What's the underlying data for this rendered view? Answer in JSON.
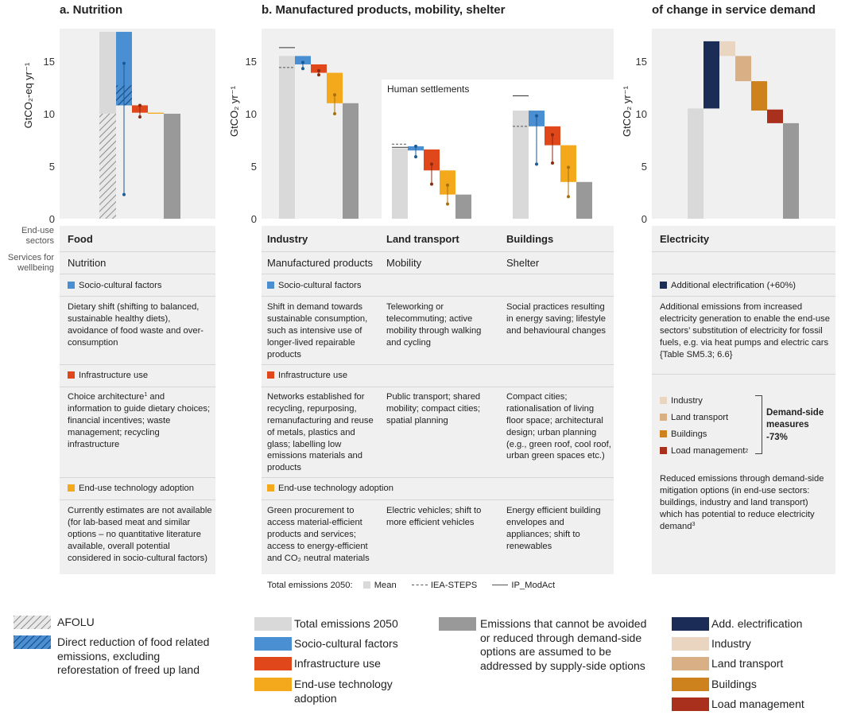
{
  "titles": {
    "a": "a. Nutrition",
    "b": "b. Manufactured products, mobility, shelter",
    "c": "of change in service demand"
  },
  "axis": {
    "ylabel_a": "GtCO₂-eq yr⁻¹",
    "ylabel_b": "GtCO₂ yr⁻¹",
    "ylabel_c": "GtCO₂ yr⁻¹",
    "ticks": [
      "0",
      "5",
      "10",
      "15"
    ],
    "inset_label": "Human settlements"
  },
  "colors": {
    "total": "#d9d9d9",
    "socio": "#4a8fd1",
    "infra": "#e0471b",
    "tech": "#f4a81c",
    "remaining": "#999999",
    "add_elec": "#1b2d57",
    "ind": "#ead5c0",
    "land": "#d9b085",
    "bld": "#cd821e",
    "load": "#a8301c",
    "socio_dot": "#1a5a96",
    "infra_dot": "#8a2a10",
    "tech_dot": "#a8700c"
  },
  "chart_data": [
    {
      "type": "bar",
      "title": "a. Nutrition",
      "ylabel": "GtCO₂-eq yr⁻¹",
      "ylim": [
        0,
        17.8
      ],
      "categories": [
        "Total emissions 2050",
        "Socio-cultural factors",
        "Infrastructure use",
        "End-use technology adoption",
        "Remaining"
      ],
      "bars": [
        {
          "name": "Total emissions 2050",
          "bottom": 0,
          "top": 17.8,
          "hatched_below": 10.0
        },
        {
          "name": "Socio-cultural factors",
          "bottom": 10.8,
          "top": 17.8,
          "hatched_from": 10.8,
          "hatched_to": 12.7,
          "mean": 14.8,
          "range": [
            2.3,
            14.8
          ]
        },
        {
          "name": "Infrastructure use",
          "bottom": 10.1,
          "top": 10.8,
          "mean": 10.8,
          "range": [
            9.7,
            10.8
          ]
        },
        {
          "name": "End-use technology adoption",
          "bottom": 10.0,
          "top": 10.1
        },
        {
          "name": "Remaining",
          "bottom": 0,
          "top": 10.0
        }
      ]
    },
    {
      "type": "bar",
      "title": "b. Manufactured products, mobility, shelter",
      "ylabel": "GtCO₂ yr⁻¹",
      "ylim": [
        0,
        17.8
      ],
      "groups": [
        {
          "name": "Industry",
          "total": 15.5,
          "iea_steps": 14.4,
          "ip_modact": 16.3,
          "steps": [
            {
              "name": "Socio-cultural factors",
              "bottom": 14.7,
              "top": 15.5,
              "mean": 14.9,
              "low": 14.3
            },
            {
              "name": "Infrastructure use",
              "bottom": 13.9,
              "top": 14.7,
              "mean": 14.1,
              "low": 13.7
            },
            {
              "name": "End-use technology adoption",
              "bottom": 11.0,
              "top": 13.9,
              "mean": 11.8,
              "low": 10.0
            }
          ],
          "remaining": 11.0
        },
        {
          "name": "Land transport",
          "total": 6.7,
          "iea_steps": 7.1,
          "ip_modact": 6.8,
          "steps": [
            {
              "name": "Socio-cultural factors",
              "bottom": 6.5,
              "top": 6.9,
              "mean": 6.9,
              "low": 5.9
            },
            {
              "name": "Infrastructure use",
              "bottom": 4.6,
              "top": 6.6,
              "mean": 5.2,
              "low": 3.3
            },
            {
              "name": "End-use technology adoption",
              "bottom": 2.3,
              "top": 4.6,
              "mean": 3.2,
              "low": 1.4
            }
          ],
          "remaining": 2.3
        },
        {
          "name": "Buildings",
          "total": 10.3,
          "iea_steps": 8.8,
          "ip_modact": 11.7,
          "steps": [
            {
              "name": "Socio-cultural factors",
              "bottom": 8.8,
              "top": 10.3,
              "mean": 9.8,
              "low": 5.2
            },
            {
              "name": "Infrastructure use",
              "bottom": 7.0,
              "top": 8.8,
              "mean": 8.0,
              "low": 5.3
            },
            {
              "name": "End-use technology adoption",
              "bottom": 3.5,
              "top": 7.0,
              "mean": 4.9,
              "low": 2.1
            }
          ],
          "remaining": 3.5
        }
      ]
    },
    {
      "type": "bar",
      "title": "of change in service demand",
      "ylabel": "GtCO₂ yr⁻¹",
      "ylim": [
        0,
        17.8
      ],
      "bars": [
        {
          "name": "Electricity total",
          "bottom": 0,
          "top": 10.5
        },
        {
          "name": "Add. electrification",
          "bottom": 10.5,
          "top": 16.9
        },
        {
          "name": "Industry",
          "bottom": 15.5,
          "top": 16.9
        },
        {
          "name": "Land transport",
          "bottom": 13.1,
          "top": 15.5
        },
        {
          "name": "Buildings",
          "bottom": 10.3,
          "top": 13.1
        },
        {
          "name": "Load management",
          "bottom": 9.1,
          "top": 10.4
        },
        {
          "name": "Remaining",
          "bottom": 0,
          "top": 9.1
        }
      ]
    }
  ],
  "side": {
    "sectors": "End-use sectors",
    "services": "Services for wellbeing"
  },
  "table_a": {
    "sector": "Food",
    "service": "Nutrition",
    "h1": "Socio-cultural factors",
    "t1": "Dietary shift (shifting to balanced, sustainable healthy diets), avoidance of food waste and over-consumption",
    "h2": "Infrastructure use",
    "t2_a": "Choice architecture",
    "t2_sup": "1",
    "t2_b": " and information to guide dietary choices; financial incentives; waste management; recycling infrastructure",
    "h3": "End-use technology adoption",
    "t3": "Currently estimates are not available (for lab-based meat and similar options – no quantitative literature available, overall potential considered in socio-cultural factors)"
  },
  "table_b": {
    "sectors": [
      "Industry",
      "Land transport",
      "Buildings"
    ],
    "services": [
      "Manufactured products",
      "Mobility",
      "Shelter"
    ],
    "h1": "Socio-cultural factors",
    "t1": [
      "Shift in demand towards sustainable consumption, such as intensive use of longer-lived repairable products",
      "Teleworking or telecommuting; active mobility through walking and cycling",
      "Social practices resulting in energy saving; lifestyle and behavioural changes"
    ],
    "h2": "Infrastructure use",
    "t2": [
      "Networks established for recycling, repurposing, remanufacturing and reuse of metals, plastics and glass; labelling low emissions materials and products",
      "Public transport; shared mobility; compact cities; spatial planning",
      "Compact cities; rationalisation of living floor space; architectural design; urban planning (e.g., green roof, cool roof, urban green spaces etc.)"
    ],
    "h3": "End-use technology adoption",
    "t3": [
      "Green procurement to access material-efficient products and services; access to energy-efficient and CO₂ neutral materials",
      "Electric vehicles; shift to more efficient vehicles",
      "Energy efficient building envelopes and appliances; shift to renewables"
    ],
    "total_label": "Total emissions 2050:",
    "mean_label": "Mean",
    "iea_label": "IEA-STEPS",
    "ip_label": "IP_ModAct"
  },
  "table_c": {
    "sector": "Electricity",
    "h1": "Additional electrification (+60%)",
    "t1": "Additional emissions from increased electricity generation to enable the end-use sectors’ substitution of electricity for fossil fuels, e.g. via heat pumps and electric cars {Table SM5.3; 6.6}",
    "items": [
      "Industry",
      "Land transport",
      "Buildings",
      "Load management"
    ],
    "load_sup": "2",
    "dsm_title": "Demand-side measures",
    "dsm_value": "-73%",
    "t2": "Reduced emissions through demand-side mitigation options (in end-use sectors: buildings, industry and land transport) which has potential to reduce electricity demand",
    "t2_sup": "3"
  },
  "legend": {
    "afolu": "AFOLU",
    "direct": "Direct reduction of food related emissions, excluding reforestation of freed up land",
    "total": "Total emissions 2050",
    "socio": "Socio-cultural factors",
    "infra": "Infrastructure use",
    "tech": "End-use technology adoption",
    "remaining": "Emissions that cannot be avoided or reduced through demand-side options are assumed to be addressed by supply-side options",
    "add_elec": "Add. electrification",
    "ind": "Industry",
    "land": "Land transport",
    "bld": "Buildings",
    "load": "Load management"
  }
}
